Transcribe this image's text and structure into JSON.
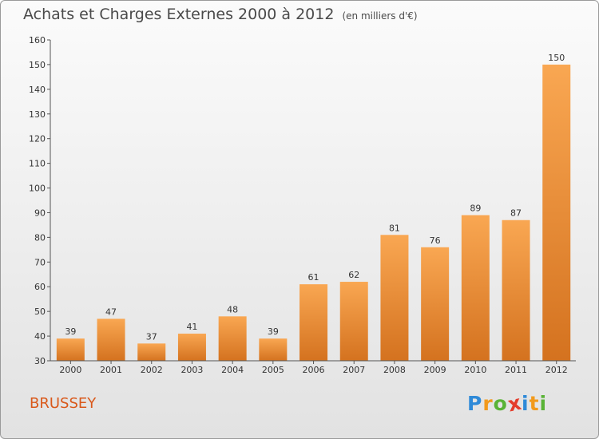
{
  "title": "Achats et Charges Externes 2000 à 2012",
  "unit_note": "(en milliers d'€)",
  "commune": "BRUSSEY",
  "logo": {
    "letters": [
      {
        "char": "P",
        "color": "#2f8ad8"
      },
      {
        "char": "r",
        "color": "#f29a1c"
      },
      {
        "char": "o",
        "color": "#59b336"
      },
      {
        "char": "x",
        "color": "#e43c2b"
      },
      {
        "char": "i",
        "color": "#2f8ad8"
      },
      {
        "char": "t",
        "color": "#f29a1c"
      },
      {
        "char": "i",
        "color": "#59b336"
      }
    ]
  },
  "colors": {
    "bar_top": "#f9a752",
    "bar_bottom": "#d4721f",
    "commune": "#d9581a"
  },
  "chart_data": {
    "type": "bar",
    "categories": [
      "2000",
      "2001",
      "2002",
      "2003",
      "2004",
      "2005",
      "2006",
      "2007",
      "2008",
      "2009",
      "2010",
      "2011",
      "2012"
    ],
    "values": [
      39,
      47,
      37,
      41,
      48,
      39,
      61,
      62,
      81,
      76,
      89,
      87,
      150
    ],
    "yticks": [
      30,
      40,
      50,
      60,
      70,
      80,
      90,
      100,
      110,
      120,
      130,
      140,
      150,
      160
    ],
    "ylim": [
      30,
      160
    ],
    "title": "Achats et Charges Externes 2000 à 2012",
    "xlabel": "",
    "ylabel": "",
    "grid": false
  }
}
